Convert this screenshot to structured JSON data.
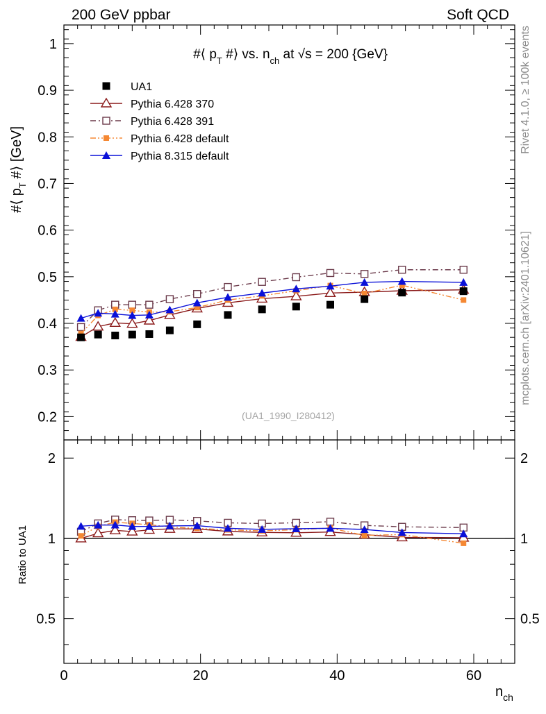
{
  "header": {
    "left": "200 GeV ppbar",
    "right": "Soft QCD"
  },
  "side_labels": {
    "rivet": "Rivet 4.1.0, ≥ 100k events",
    "mcplots": "mcplots.cern.ch [arXiv:2401.10621]"
  },
  "watermark": "(UA1_1990_I280412)",
  "colors": {
    "data": "#000000",
    "p370": "#8b1a1a",
    "p391": "#6b3a4a",
    "p6def": "#f58833",
    "p8": "#0a10d8"
  },
  "chart_data": [
    {
      "type": "line",
      "title_parts": {
        "a": "#⟨ p",
        "b": "T",
        "c": " #⟩ vs. n",
        "d": "ch",
        "e": " at √s = 200 {GeV}"
      },
      "ylabel_parts": {
        "a": "#⟨ p",
        "b": "T",
        "c": " #⟩ [GeV]"
      },
      "xlim": [
        0,
        66
      ],
      "ylim": [
        0.15,
        1.04
      ],
      "yticks": [
        0.2,
        0.3,
        0.4,
        0.5,
        0.6,
        0.7,
        0.8,
        0.9,
        1
      ],
      "ytick_labels": [
        "0.2",
        "0.3",
        "0.4",
        "0.5",
        "0.6",
        "0.7",
        "0.8",
        "0.9",
        "1"
      ],
      "x": [
        2.5,
        5,
        7.5,
        10,
        12.5,
        15.5,
        19.5,
        24,
        29,
        34,
        39,
        44,
        49.5,
        58.5
      ],
      "series": [
        {
          "key": "ua1",
          "name": "UA1",
          "marker": "square-filled",
          "line": "none",
          "values": [
            0.37,
            0.376,
            0.374,
            0.376,
            0.377,
            0.385,
            0.398,
            0.418,
            0.43,
            0.436,
            0.44,
            0.452,
            0.466,
            0.469
          ]
        },
        {
          "key": "p370",
          "name": "Pythia 6.428 370",
          "marker": "triangle-open",
          "line": "solid",
          "values": [
            0.371,
            0.393,
            0.401,
            0.399,
            0.406,
            0.418,
            0.432,
            0.444,
            0.453,
            0.458,
            0.465,
            0.467,
            0.47,
            0.472
          ]
        },
        {
          "key": "p391",
          "name": "Pythia 6.428 391",
          "marker": "square-open",
          "line": "dashdot",
          "values": [
            0.392,
            0.428,
            0.44,
            0.44,
            0.44,
            0.452,
            0.463,
            0.478,
            0.489,
            0.499,
            0.508,
            0.506,
            0.515,
            0.515
          ]
        },
        {
          "key": "p6def",
          "name": "Pythia 6.428 default",
          "marker": "square-small",
          "line": "dashdotdot",
          "values": [
            0.378,
            0.417,
            0.43,
            0.428,
            0.424,
            0.425,
            0.434,
            0.45,
            0.459,
            0.47,
            0.481,
            0.464,
            0.482,
            0.45
          ]
        },
        {
          "key": "p8",
          "name": "Pythia 8.315 default",
          "marker": "triangle-filled",
          "line": "solid",
          "values": [
            0.411,
            0.422,
            0.42,
            0.417,
            0.418,
            0.429,
            0.444,
            0.456,
            0.465,
            0.474,
            0.48,
            0.488,
            0.49,
            0.488
          ]
        }
      ]
    },
    {
      "type": "line",
      "ylabel": "Ratio to UA1",
      "xlabel_parts": {
        "a": "n",
        "b": "ch"
      },
      "xlim": [
        0,
        66
      ],
      "ylim": [
        0.34,
        2.34
      ],
      "ylog": true,
      "xticks": [
        0,
        20,
        40,
        60
      ],
      "xtick_labels": [
        "0",
        "20",
        "40",
        "60"
      ],
      "yticks": [
        0.5,
        1,
        2
      ],
      "ytick_labels": [
        "0.5",
        "1",
        "2"
      ],
      "reference": 1,
      "x": [
        2.5,
        5,
        7.5,
        10,
        12.5,
        15.5,
        19.5,
        24,
        29,
        34,
        39,
        44,
        49.5,
        58.5
      ],
      "series": [
        {
          "key": "p370",
          "values": [
            1.0,
            1.045,
            1.072,
            1.061,
            1.077,
            1.086,
            1.085,
            1.062,
            1.053,
            1.05,
            1.057,
            1.033,
            1.009,
            1.006
          ]
        },
        {
          "key": "p391",
          "values": [
            1.059,
            1.138,
            1.176,
            1.17,
            1.167,
            1.174,
            1.163,
            1.144,
            1.137,
            1.144,
            1.155,
            1.119,
            1.105,
            1.098
          ]
        },
        {
          "key": "p6def",
          "values": [
            1.022,
            1.109,
            1.15,
            1.138,
            1.125,
            1.104,
            1.09,
            1.077,
            1.067,
            1.078,
            1.093,
            1.026,
            1.034,
            0.959
          ]
        },
        {
          "key": "p8",
          "values": [
            1.111,
            1.122,
            1.123,
            1.109,
            1.109,
            1.114,
            1.116,
            1.091,
            1.081,
            1.087,
            1.091,
            1.08,
            1.052,
            1.041
          ]
        }
      ]
    }
  ]
}
